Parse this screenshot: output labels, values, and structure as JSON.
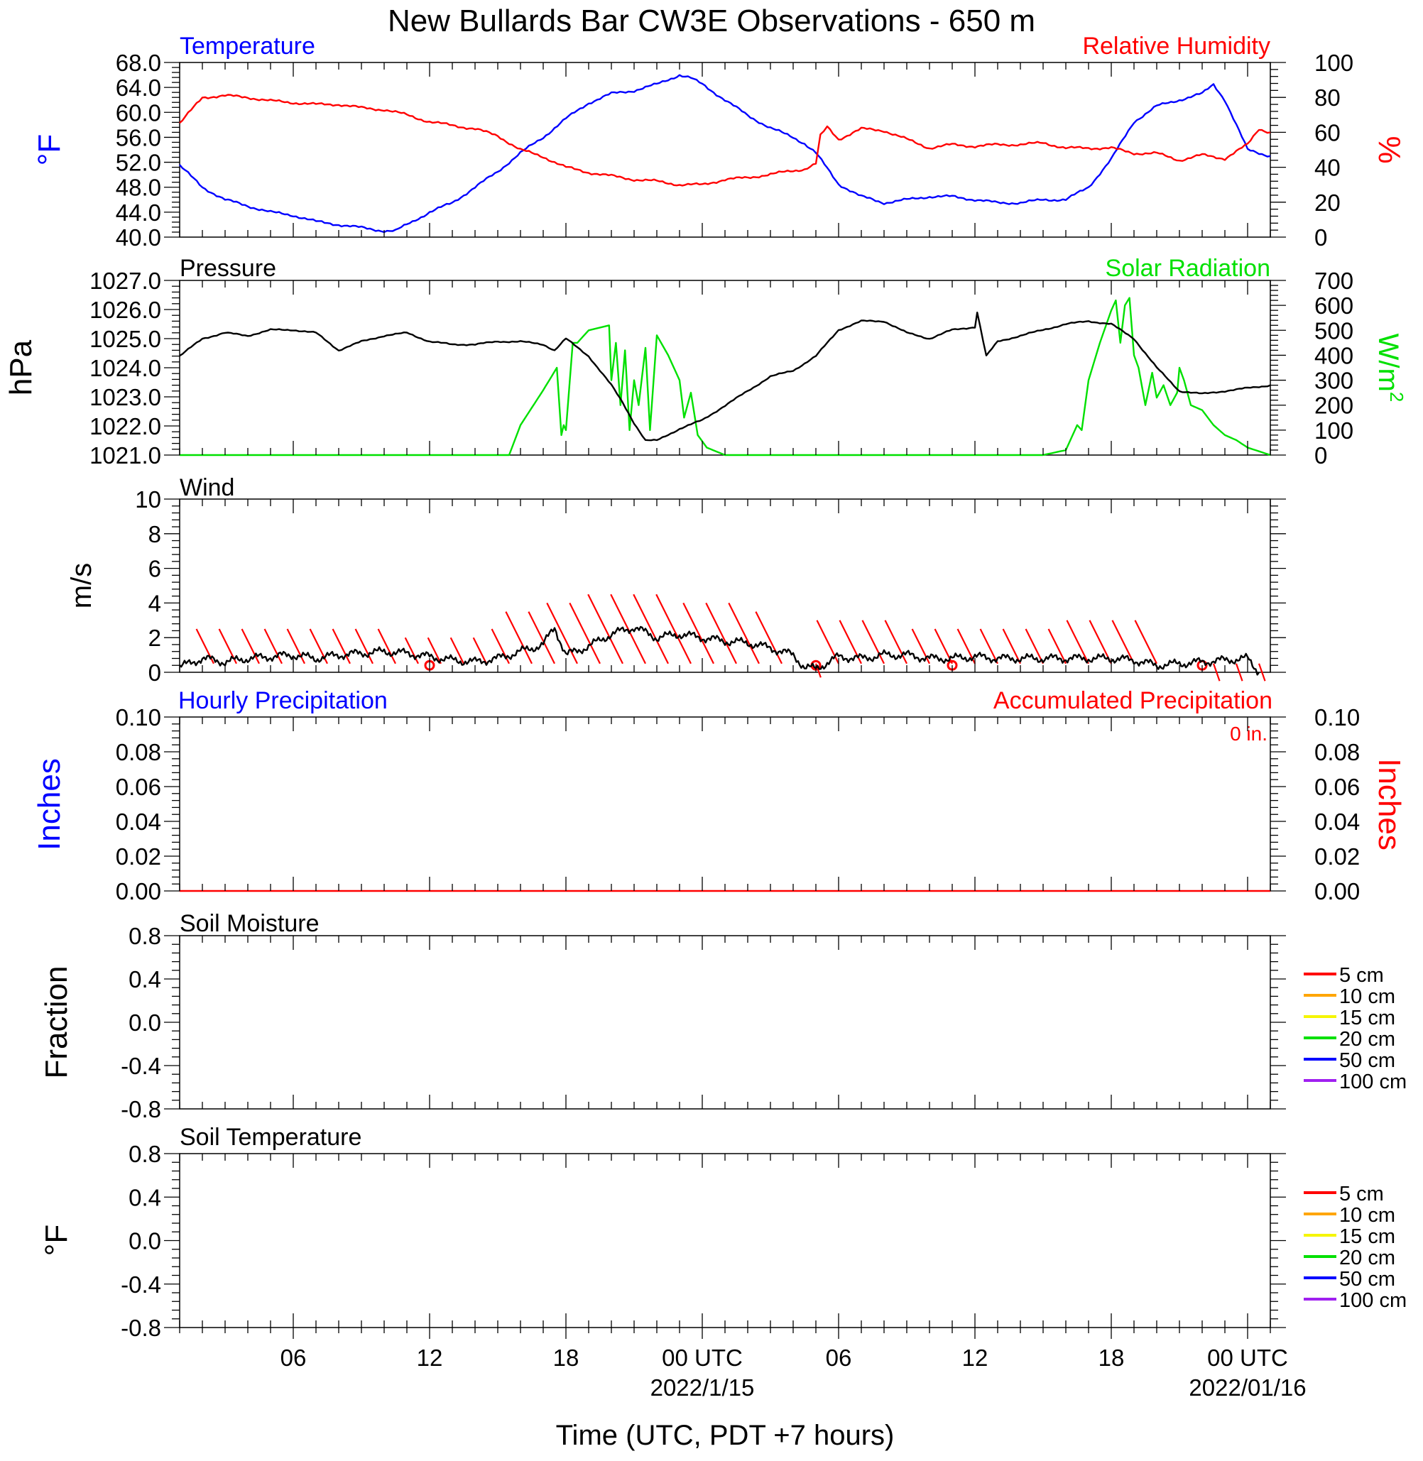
{
  "title": "New Bullards Bar CW3E Observations - 650 m",
  "xlabel": "Time (UTC, PDT +7 hours)",
  "colors": {
    "blue": "#0000ff",
    "red": "#ff0000",
    "green": "#00e000",
    "black": "#000000",
    "orange": "#ffa500",
    "yellow": "#f5f500",
    "purple": "#a020f0"
  },
  "x_axis": {
    "unit": "hours since 2022-01-14 00 UTC",
    "range": [
      1,
      49
    ],
    "ticks": [
      {
        "x": 6,
        "label": "06",
        "sub": ""
      },
      {
        "x": 12,
        "label": "12",
        "sub": ""
      },
      {
        "x": 18,
        "label": "18",
        "sub": ""
      },
      {
        "x": 24,
        "label": "00 UTC",
        "sub": "2022/1/15"
      },
      {
        "x": 30,
        "label": "06",
        "sub": ""
      },
      {
        "x": 36,
        "label": "12",
        "sub": ""
      },
      {
        "x": 42,
        "label": "18",
        "sub": ""
      },
      {
        "x": 48,
        "label": "00 UTC",
        "sub": "2022/01/16"
      }
    ]
  },
  "panels": {
    "temp_rh": {
      "left_title": "Temperature",
      "right_title": "Relative Humidity",
      "left_unit": "°F",
      "right_unit": "%",
      "left_ticks": [
        "68.0",
        "64.0",
        "60.0",
        "56.0",
        "52.0",
        "48.0",
        "44.0",
        "40.0"
      ],
      "right_ticks": [
        "100",
        "80",
        "60",
        "40",
        "20",
        "0"
      ]
    },
    "pressure_solar": {
      "left_title": "Pressure",
      "right_title": "Solar Radiation",
      "left_unit": "hPa",
      "right_unit": "W/m",
      "right_unit_sup": "2",
      "left_ticks": [
        "1027.0",
        "1026.0",
        "1025.0",
        "1024.0",
        "1023.0",
        "1022.0",
        "1021.0"
      ],
      "right_ticks": [
        "700",
        "600",
        "500",
        "400",
        "300",
        "200",
        "100",
        "0"
      ]
    },
    "wind": {
      "left_title": "Wind",
      "left_unit": "m/s",
      "left_ticks": [
        "10",
        "8",
        "6",
        "4",
        "2",
        "0"
      ]
    },
    "precip": {
      "left_title": "Hourly Precipitation",
      "right_title": "Accumulated Precipitation",
      "total_label": "0 in.",
      "left_unit": "Inches",
      "right_unit": "Inches",
      "left_ticks": [
        "0.10",
        "0.08",
        "0.06",
        "0.04",
        "0.02",
        "0.00"
      ],
      "right_ticks": [
        "0.10",
        "0.08",
        "0.06",
        "0.04",
        "0.02",
        "0.00"
      ]
    },
    "soil_moisture": {
      "left_title": "Soil Moisture",
      "left_unit": "Fraction",
      "left_ticks": [
        "0.8",
        "0.4",
        "0.0",
        "-0.4",
        "-0.8"
      ],
      "legend": [
        "5 cm",
        "10 cm",
        "15 cm",
        "20 cm",
        "50 cm",
        "100 cm"
      ]
    },
    "soil_temp": {
      "left_title": "Soil Temperature",
      "left_unit": "°F",
      "left_ticks": [
        "0.8",
        "0.4",
        "0.0",
        "-0.4",
        "-0.8"
      ],
      "legend": [
        "5 cm",
        "10 cm",
        "15 cm",
        "20 cm",
        "50 cm",
        "100 cm"
      ]
    }
  },
  "chart_data": [
    {
      "type": "line",
      "title": "Temperature",
      "ylabel": "°F",
      "ylim": [
        40,
        68
      ],
      "series": [
        {
          "name": "Temperature",
          "color": "#0000ff",
          "x": [
            1,
            2,
            3,
            4,
            5,
            6,
            7,
            8,
            9,
            10,
            10.5,
            11,
            12,
            13,
            14,
            15,
            16,
            17,
            18,
            19,
            20,
            21,
            22,
            23,
            23.5,
            24,
            25,
            26,
            27,
            28,
            28.5,
            29,
            30,
            31,
            32,
            33,
            34,
            35,
            36,
            37,
            38,
            39,
            40,
            41,
            42,
            43,
            44,
            45,
            46,
            46.5,
            47,
            47.5,
            48,
            49
          ],
          "y": [
            51.5,
            48,
            46,
            45,
            44,
            43.5,
            42.5,
            42,
            41.5,
            41,
            41,
            42,
            44,
            45.5,
            48,
            50.5,
            53.5,
            56,
            59,
            61.5,
            63,
            63.5,
            64.5,
            66,
            65.5,
            64.5,
            62,
            59.5,
            57.5,
            56,
            55,
            53.5,
            48.5,
            46.5,
            45.5,
            46,
            46.5,
            46.5,
            46,
            45.5,
            45.5,
            46,
            46,
            48,
            52.5,
            58.5,
            61,
            62,
            63,
            64.5,
            62,
            58,
            54,
            53
          ]
        }
      ]
    },
    {
      "type": "line",
      "title": "Relative Humidity",
      "ylabel": "%",
      "ylim": [
        0,
        100
      ],
      "series": [
        {
          "name": "Relative Humidity",
          "color": "#ff0000",
          "x": [
            1,
            2,
            3,
            4,
            5,
            6,
            7,
            8,
            9,
            10,
            11,
            12,
            13,
            14,
            15,
            16,
            17,
            18,
            19,
            20,
            21,
            22,
            23,
            24,
            25,
            26,
            27,
            28,
            28.5,
            29,
            29.2,
            29.5,
            30,
            31,
            32,
            33,
            34,
            35,
            36,
            37,
            38,
            39,
            40,
            41,
            42,
            43,
            44,
            45,
            46,
            47,
            48,
            48.5,
            49
          ],
          "y": [
            65,
            80,
            81,
            80,
            78,
            77,
            76,
            76,
            74,
            73,
            70,
            66,
            64,
            62,
            58,
            50,
            46,
            40,
            37,
            35,
            33,
            32,
            30,
            30,
            33,
            34,
            36,
            38,
            39,
            42,
            58,
            63,
            56,
            62,
            61,
            56,
            51,
            53,
            52,
            53,
            53,
            54,
            51,
            51,
            51,
            48,
            48,
            44,
            47,
            45,
            53,
            62,
            60
          ]
        }
      ]
    },
    {
      "type": "line",
      "title": "Pressure",
      "ylabel": "hPa",
      "ylim": [
        1021,
        1027
      ],
      "series": [
        {
          "name": "Pressure",
          "color": "#000000",
          "x": [
            1,
            2,
            3,
            4,
            5,
            6,
            7,
            8,
            9,
            10,
            11,
            12,
            13,
            14,
            15,
            16,
            17,
            17.5,
            18,
            19,
            20,
            20.5,
            21,
            21.5,
            22,
            23,
            24,
            25,
            26,
            27,
            28,
            29,
            30,
            31,
            32,
            33,
            34,
            35,
            36,
            36.1,
            36.5,
            37,
            38,
            39,
            40,
            41,
            42,
            43,
            44,
            45,
            46,
            47,
            48,
            49
          ],
          "y": [
            1024.4,
            1025.0,
            1025.2,
            1025.1,
            1025.3,
            1025.3,
            1025.2,
            1024.6,
            1024.9,
            1025.1,
            1025.2,
            1024.9,
            1024.8,
            1024.8,
            1024.9,
            1024.9,
            1024.8,
            1024.6,
            1025.0,
            1024.4,
            1023.4,
            1022.8,
            1022.1,
            1021.5,
            1021.5,
            1021.9,
            1022.2,
            1022.7,
            1023.2,
            1023.7,
            1023.9,
            1024.4,
            1025.3,
            1025.6,
            1025.6,
            1025.2,
            1025.0,
            1025.3,
            1025.4,
            1025.9,
            1024.4,
            1024.9,
            1025.1,
            1025.3,
            1025.5,
            1025.6,
            1025.5,
            1025.0,
            1024.0,
            1023.2,
            1023.1,
            1023.2,
            1023.3,
            1023.4
          ]
        }
      ]
    },
    {
      "type": "line",
      "title": "Solar Radiation",
      "ylabel": "W/m2",
      "ylim": [
        0,
        700
      ],
      "series": [
        {
          "name": "Solar Radiation",
          "color": "#00e000",
          "x": [
            1,
            15.5,
            16,
            17,
            17.6,
            17.8,
            17.9,
            18,
            18.3,
            18.5,
            19,
            19.9,
            20,
            20.2,
            20.4,
            20.6,
            20.8,
            21,
            21.2,
            21.5,
            21.7,
            22,
            22.5,
            23,
            23.2,
            23.5,
            23.8,
            24.2,
            25,
            26,
            27,
            28,
            29,
            30,
            31,
            32,
            33,
            34,
            35,
            36,
            37,
            38,
            39,
            40,
            40.5,
            40.7,
            41,
            41.5,
            42,
            42.2,
            42.4,
            42.6,
            42.8,
            43,
            43.2,
            43.5,
            43.8,
            44,
            44.3,
            44.6,
            44.9,
            45,
            45.2,
            45.5,
            46,
            46.5,
            47,
            47.5,
            48,
            49
          ],
          "y": [
            0,
            0,
            120,
            260,
            350,
            80,
            120,
            100,
            450,
            450,
            500,
            520,
            300,
            450,
            200,
            420,
            100,
            300,
            200,
            430,
            100,
            480,
            400,
            300,
            150,
            250,
            80,
            30,
            0,
            0,
            0,
            0,
            0,
            0,
            0,
            0,
            0,
            0,
            0,
            0,
            0,
            0,
            0,
            20,
            120,
            100,
            300,
            450,
            580,
            620,
            450,
            600,
            630,
            400,
            350,
            200,
            330,
            230,
            280,
            200,
            250,
            350,
            300,
            200,
            180,
            120,
            80,
            60,
            30,
            0
          ]
        }
      ]
    },
    {
      "type": "line",
      "title": "Wind",
      "ylabel": "m/s",
      "ylim": [
        0,
        10
      ],
      "series": [
        {
          "name": "Wind speed",
          "color": "#000000",
          "x": [
            1,
            2,
            3,
            4,
            5,
            6,
            7,
            8,
            9,
            10,
            11,
            12,
            13,
            14,
            15,
            16,
            17,
            17.5,
            18,
            19,
            20,
            21,
            22,
            23,
            24,
            25,
            26,
            27,
            28,
            28.5,
            29,
            30,
            31,
            32,
            33,
            34,
            35,
            36,
            37,
            38,
            39,
            40,
            41,
            42,
            43,
            44,
            45,
            46,
            47,
            48,
            48.5
          ],
          "y": [
            0.3,
            0.8,
            0.6,
            0.8,
            0.9,
            1.0,
            0.8,
            1.0,
            1.1,
            1.2,
            1.1,
            0.9,
            0.7,
            0.6,
            0.8,
            1.2,
            1.6,
            2.6,
            1.0,
            1.5,
            2.2,
            2.6,
            2.0,
            2.2,
            2.0,
            1.8,
            1.7,
            1.4,
            1.0,
            0.3,
            0.2,
            0.9,
            0.8,
            1.0,
            1.0,
            0.8,
            0.8,
            0.9,
            0.8,
            0.8,
            0.8,
            0.8,
            0.8,
            0.8,
            0.7,
            0.4,
            0.5,
            0.6,
            0.7,
            0.8,
            0.0
          ]
        }
      ]
    },
    {
      "type": "line",
      "title": "Hourly Precipitation",
      "ylabel": "Inches",
      "ylim": [
        0,
        0.1
      ],
      "series": [
        {
          "name": "Accumulated Precipitation",
          "color": "#ff0000",
          "x": [
            1,
            49
          ],
          "y": [
            0,
            0
          ]
        }
      ]
    }
  ],
  "wind_barbs": [
    {
      "x": 2.5,
      "y": 2
    },
    {
      "x": 3.5,
      "y": 2
    },
    {
      "x": 4.5,
      "y": 2
    },
    {
      "x": 5.5,
      "y": 2
    },
    {
      "x": 6.5,
      "y": 2
    },
    {
      "x": 7.5,
      "y": 2
    },
    {
      "x": 8.5,
      "y": 2
    },
    {
      "x": 9.5,
      "y": 2
    },
    {
      "x": 10.5,
      "y": 2
    },
    {
      "x": 11.5,
      "y": 1.5
    },
    {
      "x": 12.5,
      "y": 1.5
    },
    {
      "x": 13.5,
      "y": 1.5
    },
    {
      "x": 14.5,
      "y": 1.5
    },
    {
      "x": 15.5,
      "y": 2
    },
    {
      "x": 16.5,
      "y": 3
    },
    {
      "x": 17.5,
      "y": 3
    },
    {
      "x": 18.5,
      "y": 3.5
    },
    {
      "x": 19.5,
      "y": 3.5
    },
    {
      "x": 20.5,
      "y": 4
    },
    {
      "x": 21.5,
      "y": 4
    },
    {
      "x": 22.5,
      "y": 4
    },
    {
      "x": 23.5,
      "y": 4
    },
    {
      "x": 24.5,
      "y": 3.5
    },
    {
      "x": 25.5,
      "y": 3.5
    },
    {
      "x": 26.5,
      "y": 3.5
    },
    {
      "x": 27.5,
      "y": 3
    },
    {
      "x": 29,
      "y": -0.8
    },
    {
      "x": 30,
      "y": 2.5
    },
    {
      "x": 31,
      "y": 2.5
    },
    {
      "x": 32,
      "y": 2.5
    },
    {
      "x": 33,
      "y": 2.5
    },
    {
      "x": 34,
      "y": 2
    },
    {
      "x": 35,
      "y": 2
    },
    {
      "x": 36,
      "y": 2
    },
    {
      "x": 37,
      "y": 2
    },
    {
      "x": 38,
      "y": 2
    },
    {
      "x": 39,
      "y": 2
    },
    {
      "x": 40,
      "y": 2
    },
    {
      "x": 41,
      "y": 2.5
    },
    {
      "x": 42,
      "y": 2.5
    },
    {
      "x": 43,
      "y": 2.5
    },
    {
      "x": 44,
      "y": 2.5
    },
    {
      "x": 46.5,
      "y": -1
    },
    {
      "x": 47.5,
      "y": -1
    },
    {
      "x": 48.5,
      "y": -1
    }
  ],
  "calm_markers": [
    12,
    29,
    35,
    46
  ]
}
